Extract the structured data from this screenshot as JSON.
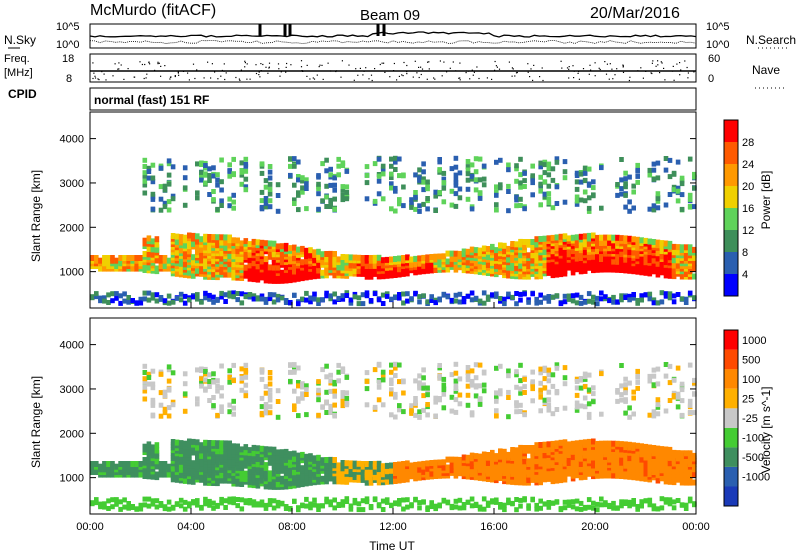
{
  "header": {
    "station": "McMurdo (fitACF)",
    "beam": "Beam 09",
    "date": "20/Mar/2016"
  },
  "summary_labels": {
    "nsky": "N.Sky",
    "nsearch": "N.Search",
    "freq_line1": "Freq.",
    "freq_line2": "[MHz]",
    "nave": "Nave",
    "cpid": "CPID",
    "cpid_value": "normal (fast) 151 RF",
    "noise_ticks": [
      "10^5",
      "10^0"
    ],
    "noise_ticks_right": [
      "10^5",
      "10^0"
    ],
    "freq_ticks": [
      "18",
      "8"
    ],
    "nave_ticks": [
      "60",
      "0"
    ]
  },
  "colors": {
    "power": [
      "#0000ff",
      "#2a5fb0",
      "#3e8f5a",
      "#5fd35a",
      "#f0d000",
      "#ff9900",
      "#ff5a00",
      "#ff0000"
    ],
    "velocity": [
      "#ff0000",
      "#ff4a00",
      "#ff8800",
      "#ffb000",
      "#c8c8c8",
      "#44cc33",
      "#3f8f5f",
      "#2a5fb0",
      "#1a3ab8"
    ]
  },
  "chart_data": [
    {
      "type": "heatmap",
      "title": "",
      "xlabel": "",
      "ylabel": "Slant Range [km]",
      "colorbar_label": "Power [dB]",
      "colorbar_ticks": [
        "4",
        "8",
        "12",
        "16",
        "20",
        "24",
        "28"
      ],
      "x_range": [
        "00:00",
        "24:00"
      ],
      "ylim": [
        180,
        4600
      ],
      "yticks": [
        "1000",
        "2000",
        "3000",
        "4000"
      ],
      "description_values": {
        "main_echo_band_km": [
          700,
          1800
        ],
        "upper_band_km": [
          2400,
          3500
        ]
      }
    },
    {
      "type": "heatmap",
      "title": "",
      "xlabel": "Time UT",
      "ylabel": "Slant Range [km]",
      "colorbar_label": "Velocity [m s^-1]",
      "colorbar_ticks": [
        "1000",
        "500",
        "100",
        "25",
        "-25",
        "-100",
        "-500",
        "-1000"
      ],
      "x_range": [
        "00:00",
        "24:00"
      ],
      "xticks": [
        "00:00",
        "04:00",
        "08:00",
        "12:00",
        "16:00",
        "20:00",
        "00:00"
      ],
      "ylim": [
        180,
        4600
      ],
      "yticks": [
        "1000",
        "2000",
        "3000",
        "4000"
      ]
    }
  ]
}
